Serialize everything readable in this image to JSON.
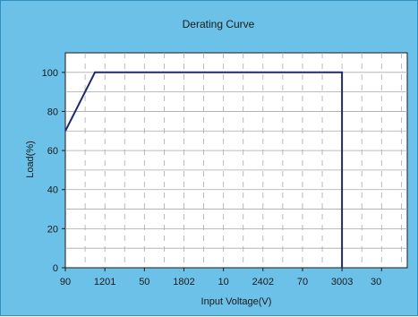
{
  "chart_data": {
    "type": "line",
    "title": "Derating Curve",
    "xlabel": "Input Voltage(V)",
    "ylabel": "Load(%)",
    "x_tick_labels": [
      "90",
      "1201",
      "50",
      "1802",
      "10",
      "2402",
      "70",
      "3003",
      "30"
    ],
    "y_ticks": [
      0,
      20,
      40,
      60,
      80,
      100
    ],
    "ylim": [
      0,
      110
    ],
    "grid": true,
    "series": [
      {
        "x_index": [
          0,
          0.75,
          7.0,
          7.0
        ],
        "y": [
          70,
          100,
          100,
          0
        ]
      }
    ],
    "colors": {
      "background": "#6cc1e8",
      "plot": "#ffffff",
      "grid": "#a9a9a9",
      "line": "#1f2a6b"
    }
  }
}
